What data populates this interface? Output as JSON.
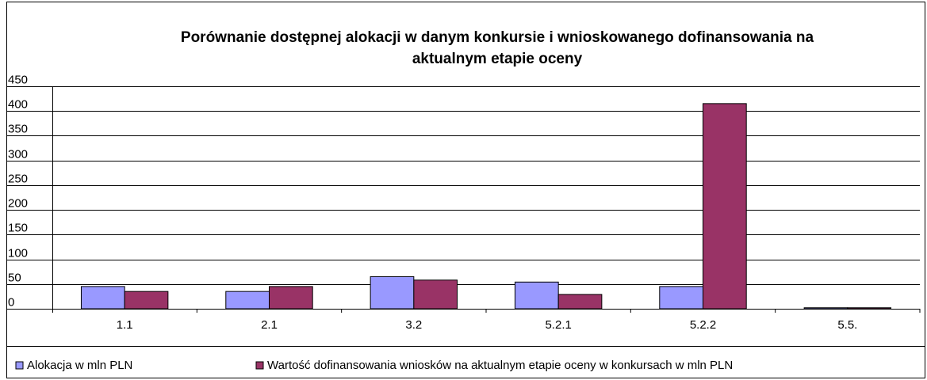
{
  "chart_data": {
    "type": "bar",
    "title": "Porównanie dostępnej alokacji w danym konkursie i wnioskowanego dofinansowania na aktualnym etapie oceny",
    "categories": [
      "1.1",
      "2.1",
      "3.2",
      "5.2.1",
      "5.2.2",
      "5.5."
    ],
    "series": [
      {
        "name": "Alokacja w mln PLN",
        "color": "#9999ff",
        "values": [
          45,
          35,
          65,
          54,
          45,
          2
        ]
      },
      {
        "name": "Wartość dofinansowania wniosków na aktualnym etapie oceny w konkursach w mln PLN",
        "color": "#993366",
        "values": [
          35,
          45,
          58,
          29,
          415,
          2
        ]
      }
    ],
    "ylim": [
      0,
      450
    ],
    "yticks": [
      0,
      50,
      100,
      150,
      200,
      250,
      300,
      350,
      400,
      450
    ],
    "grid": true,
    "legend": "bottom"
  }
}
